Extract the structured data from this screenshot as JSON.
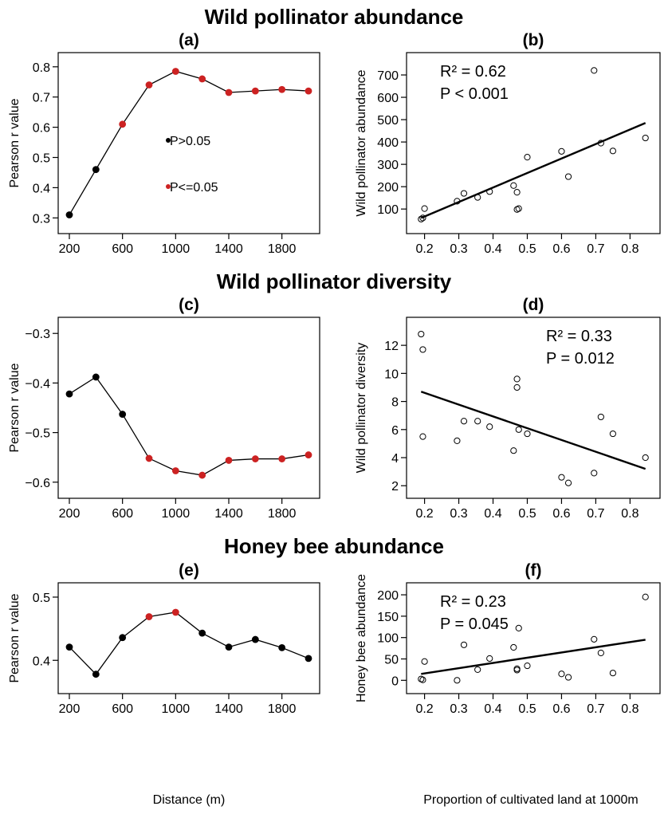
{
  "section_titles": [
    "Wild pollinator abundance",
    "Wild pollinator diversity",
    "Honey bee abundance"
  ],
  "xlabels": {
    "distance": "Distance (m)",
    "proportion": "Proportion of cultivated land at 1000m"
  },
  "legend": {
    "nonsig_label": "P>0.05",
    "sig_label": "P<=0.05"
  },
  "colors": {
    "significant": "#cc2222",
    "nonsignificant": "#000000",
    "line": "#000000"
  },
  "chart_data": [
    {
      "panel": "(a)",
      "type": "line",
      "ylabel": "Pearson r value",
      "x": [
        200,
        400,
        600,
        800,
        1000,
        1200,
        1400,
        1600,
        1800,
        2000
      ],
      "values": [
        0.31,
        0.46,
        0.61,
        0.74,
        0.785,
        0.76,
        0.715,
        0.72,
        0.725,
        0.72
      ],
      "significant": [
        false,
        false,
        true,
        true,
        true,
        true,
        true,
        true,
        true,
        true
      ],
      "xticks": [
        200,
        600,
        1000,
        1400,
        1800
      ],
      "yticks": [
        0.3,
        0.4,
        0.5,
        0.6,
        0.7,
        0.8
      ],
      "ytick_labels": [
        "0.3",
        "0.4",
        "0.5",
        "0.6",
        "0.7",
        "0.8"
      ],
      "xlim": [
        200,
        2000
      ],
      "ylim": [
        0.285,
        0.81
      ],
      "legend": true
    },
    {
      "panel": "(b)",
      "type": "scatter",
      "ylabel": "Wild pollinator abundance",
      "annotation": [
        "R² = 0.62",
        "P < 0.001"
      ],
      "points": [
        [
          0.19,
          55
        ],
        [
          0.195,
          60
        ],
        [
          0.2,
          102
        ],
        [
          0.295,
          135
        ],
        [
          0.315,
          170
        ],
        [
          0.355,
          152
        ],
        [
          0.39,
          178
        ],
        [
          0.46,
          205
        ],
        [
          0.47,
          175
        ],
        [
          0.47,
          98
        ],
        [
          0.475,
          102
        ],
        [
          0.5,
          332
        ],
        [
          0.6,
          358
        ],
        [
          0.62,
          245
        ],
        [
          0.695,
          720
        ],
        [
          0.715,
          395
        ],
        [
          0.75,
          360
        ],
        [
          0.845,
          418
        ]
      ],
      "fit": [
        [
          0.19,
          60
        ],
        [
          0.845,
          485
        ]
      ],
      "xticks": [
        0.2,
        0.3,
        0.4,
        0.5,
        0.6,
        0.7,
        0.8
      ],
      "yticks": [
        100,
        200,
        300,
        400,
        500,
        600,
        700
      ],
      "ytick_labels": [
        "100",
        "200",
        "300",
        "400",
        "500",
        "600",
        "700"
      ],
      "xlim": [
        0.18,
        0.855
      ],
      "ylim": [
        40,
        750
      ]
    },
    {
      "panel": "(c)",
      "type": "line",
      "ylabel": "Pearson r value",
      "x": [
        200,
        400,
        600,
        800,
        1000,
        1200,
        1400,
        1600,
        1800,
        2000
      ],
      "values": [
        -0.422,
        -0.388,
        -0.463,
        -0.552,
        -0.577,
        -0.586,
        -0.556,
        -0.553,
        -0.553,
        -0.545
      ],
      "significant": [
        false,
        false,
        false,
        true,
        true,
        true,
        true,
        true,
        true,
        true
      ],
      "xticks": [
        200,
        600,
        1000,
        1400,
        1800
      ],
      "yticks": [
        -0.6,
        -0.5,
        -0.4,
        -0.3
      ],
      "ytick_labels": [
        "−0.6",
        "−0.5",
        "−0.4",
        "−0.3"
      ],
      "xlim": [
        200,
        2000
      ],
      "ylim": [
        -0.61,
        -0.29
      ]
    },
    {
      "panel": "(d)",
      "type": "scatter",
      "ylabel": "Wild pollinator diversity",
      "annotation": [
        "R² = 0.33",
        "P = 0.012"
      ],
      "points": [
        [
          0.19,
          12.8
        ],
        [
          0.195,
          11.7
        ],
        [
          0.195,
          5.5
        ],
        [
          0.295,
          5.2
        ],
        [
          0.315,
          6.6
        ],
        [
          0.355,
          6.6
        ],
        [
          0.39,
          6.2
        ],
        [
          0.46,
          4.5
        ],
        [
          0.47,
          9.6
        ],
        [
          0.47,
          9.0
        ],
        [
          0.475,
          6.0
        ],
        [
          0.5,
          5.7
        ],
        [
          0.6,
          2.6
        ],
        [
          0.62,
          2.2
        ],
        [
          0.695,
          2.9
        ],
        [
          0.715,
          6.9
        ],
        [
          0.75,
          5.7
        ],
        [
          0.845,
          4.0
        ]
      ],
      "fit": [
        [
          0.19,
          8.7
        ],
        [
          0.845,
          3.2
        ]
      ],
      "xticks": [
        0.2,
        0.3,
        0.4,
        0.5,
        0.6,
        0.7,
        0.8
      ],
      "yticks": [
        2,
        4,
        6,
        8,
        10,
        12
      ],
      "ytick_labels": [
        "2",
        "4",
        "6",
        "8",
        "10",
        "12"
      ],
      "xlim": [
        0.18,
        0.855
      ],
      "ylim": [
        1.9,
        13.2
      ]
    },
    {
      "panel": "(e)",
      "type": "line",
      "ylabel": "Pearson r value",
      "x": [
        200,
        400,
        600,
        800,
        1000,
        1200,
        1400,
        1600,
        1800,
        2000
      ],
      "values": [
        0.421,
        0.378,
        0.436,
        0.469,
        0.476,
        0.443,
        0.421,
        0.433,
        0.42,
        0.403
      ],
      "significant": [
        false,
        false,
        false,
        true,
        true,
        false,
        false,
        false,
        false,
        false
      ],
      "xticks": [
        200,
        600,
        1000,
        1400,
        1800
      ],
      "yticks": [
        0.4,
        0.5
      ],
      "ytick_labels": [
        "0.4",
        "0.5"
      ],
      "xlim": [
        200,
        2000
      ],
      "ylim": [
        0.365,
        0.505
      ]
    },
    {
      "panel": "(f)",
      "type": "scatter",
      "ylabel": "Honey bee abundance",
      "annotation": [
        "R² = 0.23",
        "P = 0.045"
      ],
      "points": [
        [
          0.19,
          3
        ],
        [
          0.195,
          1
        ],
        [
          0.2,
          44
        ],
        [
          0.295,
          0
        ],
        [
          0.315,
          83
        ],
        [
          0.355,
          25
        ],
        [
          0.39,
          51
        ],
        [
          0.46,
          77
        ],
        [
          0.47,
          24
        ],
        [
          0.47,
          27
        ],
        [
          0.475,
          122
        ],
        [
          0.5,
          34
        ],
        [
          0.6,
          15
        ],
        [
          0.62,
          7
        ],
        [
          0.695,
          96
        ],
        [
          0.715,
          64
        ],
        [
          0.75,
          17
        ],
        [
          0.845,
          195
        ]
      ],
      "fit": [
        [
          0.19,
          15
        ],
        [
          0.845,
          95
        ]
      ],
      "xticks": [
        0.2,
        0.3,
        0.4,
        0.5,
        0.6,
        0.7,
        0.8
      ],
      "yticks": [
        0,
        50,
        100,
        150,
        200
      ],
      "ytick_labels": [
        "0",
        "50",
        "100",
        "150",
        "200"
      ],
      "xlim": [
        0.18,
        0.855
      ],
      "ylim": [
        -5,
        202
      ]
    }
  ]
}
